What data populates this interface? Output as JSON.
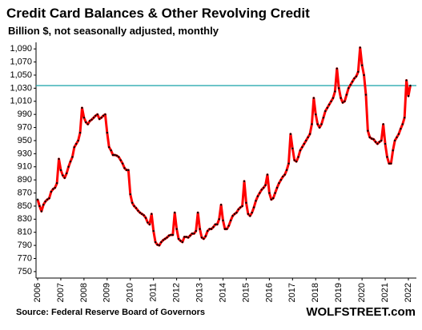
{
  "chart_data": {
    "type": "line",
    "title": "Credit Card Balances & Other Revolving Credit",
    "subtitle": "Billion $, not seasonally adjusted, monthly",
    "source": "Source: Federal Reserve Board of Governors",
    "brand": "WOLFSTREET.com",
    "categories": [
      "2006",
      null,
      null,
      null,
      null,
      null,
      null,
      null,
      null,
      null,
      null,
      null,
      "2007",
      null,
      null,
      null,
      null,
      null,
      null,
      null,
      null,
      null,
      null,
      null,
      "2008",
      null,
      null,
      null,
      null,
      null,
      null,
      null,
      null,
      null,
      null,
      null,
      "2009",
      null,
      null,
      null,
      null,
      null,
      null,
      null,
      null,
      null,
      null,
      null,
      "2010",
      null,
      null,
      null,
      null,
      null,
      null,
      null,
      null,
      null,
      null,
      null,
      "2011",
      null,
      null,
      null,
      null,
      null,
      null,
      null,
      null,
      null,
      null,
      null,
      "2012",
      null,
      null,
      null,
      null,
      null,
      null,
      null,
      null,
      null,
      null,
      null,
      "2013",
      null,
      null,
      null,
      null,
      null,
      null,
      null,
      null,
      null,
      null,
      null,
      "2014",
      null,
      null,
      null,
      null,
      null,
      null,
      null,
      null,
      null,
      null,
      null,
      "2015",
      null,
      null,
      null,
      null,
      null,
      null,
      null,
      null,
      null,
      null,
      null,
      "2016",
      null,
      null,
      null,
      null,
      null,
      null,
      null,
      null,
      null,
      null,
      null,
      "2017",
      null,
      null,
      null,
      null,
      null,
      null,
      null,
      null,
      null,
      null,
      null,
      "2018",
      null,
      null,
      null,
      null,
      null,
      null,
      null,
      null,
      null,
      null,
      null,
      "2019",
      null,
      null,
      null,
      null,
      null,
      null,
      null,
      null,
      null,
      null,
      null,
      "2020",
      null,
      null,
      null,
      null,
      null,
      null,
      null,
      null,
      null,
      null,
      null,
      "2021",
      null,
      null,
      null,
      null,
      null,
      null,
      null,
      null,
      null,
      null,
      null,
      "2022",
      null
    ],
    "values": [
      860,
      850,
      842,
      852,
      857,
      860,
      862,
      872,
      876,
      878,
      885,
      922,
      905,
      897,
      893,
      900,
      910,
      918,
      925,
      940,
      945,
      950,
      962,
      1000,
      985,
      978,
      975,
      980,
      982,
      985,
      988,
      990,
      983,
      985,
      988,
      990,
      962,
      940,
      935,
      928,
      928,
      927,
      925,
      920,
      915,
      908,
      905,
      905,
      868,
      855,
      850,
      847,
      843,
      840,
      838,
      836,
      832,
      825,
      822,
      838,
      812,
      795,
      791,
      790,
      795,
      798,
      800,
      802,
      805,
      806,
      806,
      840,
      815,
      800,
      797,
      795,
      803,
      803,
      802,
      805,
      808,
      808,
      812,
      840,
      815,
      802,
      800,
      804,
      812,
      815,
      815,
      818,
      822,
      822,
      830,
      852,
      828,
      815,
      815,
      820,
      828,
      835,
      838,
      840,
      845,
      848,
      850,
      888,
      855,
      838,
      835,
      840,
      848,
      858,
      865,
      870,
      875,
      878,
      882,
      898,
      870,
      860,
      862,
      870,
      878,
      885,
      890,
      895,
      898,
      905,
      915,
      960,
      938,
      920,
      918,
      925,
      935,
      940,
      945,
      950,
      955,
      960,
      975,
      1015,
      990,
      975,
      970,
      975,
      985,
      995,
      1000,
      1005,
      1010,
      1015,
      1025,
      1060,
      1030,
      1015,
      1008,
      1010,
      1020,
      1030,
      1035,
      1040,
      1045,
      1048,
      1055,
      1092,
      1065,
      1050,
      1020,
      965,
      955,
      953,
      952,
      948,
      945,
      948,
      950,
      975,
      945,
      925,
      915,
      915,
      935,
      950,
      955,
      960,
      968,
      975,
      985,
      1042,
      1018,
      1034
    ],
    "color": "#ff0000",
    "marker_color": "#000000",
    "reference_line": 1034,
    "reference_color": "#17a2a8",
    "ylim": [
      745,
      1100
    ],
    "yticks": [
      750,
      770,
      790,
      810,
      830,
      850,
      870,
      890,
      910,
      930,
      950,
      970,
      990,
      {
        "value": 1010,
        "label": "1,010"
      },
      {
        "value": 1030,
        "label": "1,030"
      },
      {
        "value": 1050,
        "label": "1,050"
      },
      {
        "value": 1070,
        "label": "1,070"
      },
      {
        "value": 1090,
        "label": "1,090"
      }
    ],
    "grid": false
  }
}
